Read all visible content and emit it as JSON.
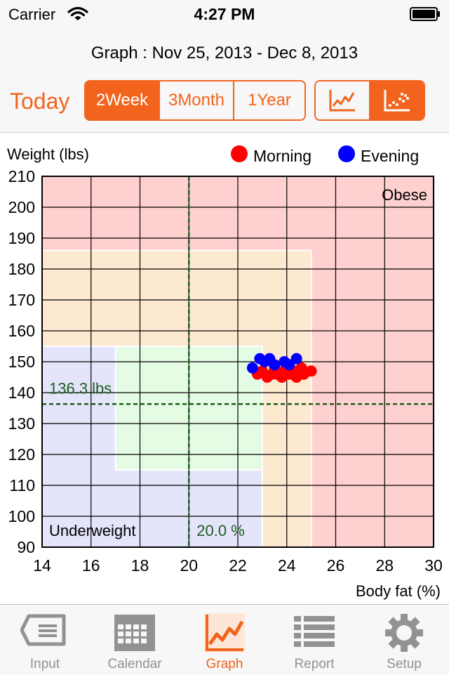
{
  "status_bar": {
    "carrier": "Carrier",
    "time": "4:27 PM"
  },
  "header": {
    "title": "Graph : Nov 25, 2013 - Dec 8, 2013",
    "today_label": "Today",
    "ranges": [
      "2Week",
      "3Month",
      "1Year"
    ],
    "active_range": "2Week",
    "view_modes": [
      "line-chart-icon",
      "scatter-chart-icon"
    ],
    "active_view_mode": "scatter-chart-icon"
  },
  "chart_data": {
    "type": "scatter",
    "ylabel": "Weight (lbs)",
    "xlabel": "Body fat (%)",
    "xlim": [
      14,
      30
    ],
    "ylim": [
      90,
      210
    ],
    "x_ticks": [
      "14",
      "16",
      "18",
      "20",
      "22",
      "24",
      "26",
      "28",
      "30"
    ],
    "y_ticks": [
      "210",
      "200",
      "190",
      "180",
      "170",
      "160",
      "150",
      "140",
      "130",
      "120",
      "110",
      "100",
      "90"
    ],
    "grid": true,
    "legend_position": "top-right",
    "target_weight": 136.3,
    "target_weight_label": "136.3 lbs",
    "target_fat": 20.0,
    "target_fat_label": "20.0 %",
    "zone_labels": {
      "top_right": "Obese",
      "bottom_left": "Underweight"
    },
    "zones": [
      {
        "name": "obese",
        "fat": [
          14,
          30
        ],
        "weight": [
          90,
          210
        ],
        "color": "#ffd0d0"
      },
      {
        "name": "overweight",
        "fat": [
          14,
          25
        ],
        "weight": [
          90,
          186
        ],
        "color": "#fde8d0"
      },
      {
        "name": "underweight",
        "fat": [
          14,
          23
        ],
        "weight": [
          90,
          155
        ],
        "color": "#e4e4fb"
      },
      {
        "name": "normal",
        "fat": [
          17,
          23
        ],
        "weight": [
          115,
          155
        ],
        "color": "#e4fbe4"
      }
    ],
    "series": [
      {
        "name": "Morning",
        "color": "#ff0000",
        "points": [
          [
            22.8,
            146
          ],
          [
            23.0,
            147
          ],
          [
            23.2,
            145
          ],
          [
            23.4,
            146
          ],
          [
            23.5,
            148
          ],
          [
            23.6,
            146
          ],
          [
            23.8,
            145
          ],
          [
            23.9,
            147
          ],
          [
            24.1,
            146
          ],
          [
            24.3,
            147
          ],
          [
            24.4,
            145
          ],
          [
            24.6,
            148
          ],
          [
            24.7,
            146
          ],
          [
            25.0,
            147
          ]
        ]
      },
      {
        "name": "Evening",
        "color": "#0000ff",
        "points": [
          [
            22.6,
            148
          ],
          [
            22.9,
            151
          ],
          [
            23.1,
            150
          ],
          [
            23.3,
            151
          ],
          [
            23.5,
            149
          ],
          [
            23.9,
            150
          ],
          [
            24.1,
            149
          ],
          [
            24.4,
            151
          ]
        ]
      }
    ]
  },
  "tabs": [
    {
      "label": "Input",
      "icon": "input-icon"
    },
    {
      "label": "Calendar",
      "icon": "calendar-icon"
    },
    {
      "label": "Graph",
      "icon": "graph-icon"
    },
    {
      "label": "Report",
      "icon": "report-icon"
    },
    {
      "label": "Setup",
      "icon": "gear-icon"
    }
  ],
  "active_tab": "Graph",
  "colors": {
    "accent": "#f2641e",
    "inactive": "#929292",
    "target_line": "#1e5e1e"
  }
}
